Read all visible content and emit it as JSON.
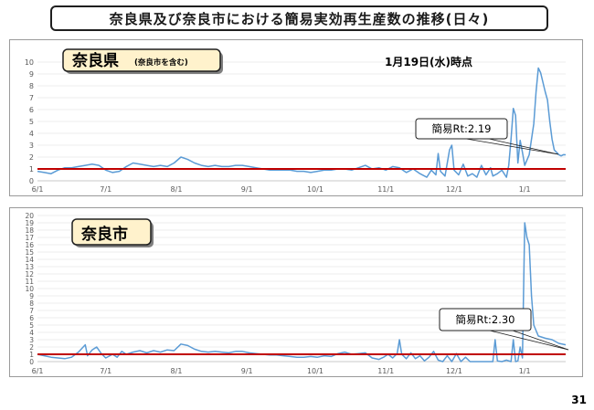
{
  "title": "奈良県及び奈良市における簡易実効再生産数の推移(日々)",
  "page_number": "31",
  "colors": {
    "line": "#5b9bd5",
    "threshold": "#c00000",
    "label_box_bg": "#fff2cc",
    "grid": "#d9d9d9"
  },
  "chart_data": [
    {
      "type": "line",
      "panel_label": "奈良県",
      "panel_sublabel": "(奈良市を含む)",
      "date_note": "1月19日(水)時点",
      "annotation": "簡易Rt:2.19",
      "x_ticks": [
        "6/1",
        "7/1",
        "8/1",
        "9/1",
        "10/1",
        "11/1",
        "12/1",
        "1/1"
      ],
      "y_ticks": [
        0,
        1,
        2,
        3,
        4,
        5,
        6,
        7,
        8,
        9,
        10
      ],
      "ylim": [
        0,
        10
      ],
      "x_range_days": [
        0,
        232
      ],
      "threshold": 1,
      "grid": true,
      "points": [
        [
          0,
          0.8
        ],
        [
          3,
          0.7
        ],
        [
          6,
          0.6
        ],
        [
          9,
          0.9
        ],
        [
          12,
          1.1
        ],
        [
          15,
          1.1
        ],
        [
          18,
          1.2
        ],
        [
          21,
          1.3
        ],
        [
          24,
          1.4
        ],
        [
          27,
          1.3
        ],
        [
          30,
          0.9
        ],
        [
          33,
          0.7
        ],
        [
          36,
          0.8
        ],
        [
          39,
          1.2
        ],
        [
          42,
          1.5
        ],
        [
          45,
          1.4
        ],
        [
          48,
          1.3
        ],
        [
          51,
          1.2
        ],
        [
          54,
          1.3
        ],
        [
          57,
          1.2
        ],
        [
          60,
          1.5
        ],
        [
          63,
          2.0
        ],
        [
          66,
          1.8
        ],
        [
          69,
          1.5
        ],
        [
          72,
          1.3
        ],
        [
          75,
          1.2
        ],
        [
          78,
          1.3
        ],
        [
          81,
          1.2
        ],
        [
          84,
          1.2
        ],
        [
          87,
          1.3
        ],
        [
          90,
          1.3
        ],
        [
          93,
          1.2
        ],
        [
          96,
          1.1
        ],
        [
          99,
          1.0
        ],
        [
          102,
          0.9
        ],
        [
          105,
          0.9
        ],
        [
          108,
          0.9
        ],
        [
          111,
          0.9
        ],
        [
          114,
          0.8
        ],
        [
          117,
          0.8
        ],
        [
          120,
          0.7
        ],
        [
          123,
          0.8
        ],
        [
          126,
          0.9
        ],
        [
          129,
          0.9
        ],
        [
          132,
          1.0
        ],
        [
          135,
          1.0
        ],
        [
          138,
          0.9
        ],
        [
          141,
          1.1
        ],
        [
          144,
          1.3
        ],
        [
          147,
          1.0
        ],
        [
          150,
          1.1
        ],
        [
          153,
          0.9
        ],
        [
          156,
          1.2
        ],
        [
          159,
          1.1
        ],
        [
          162,
          0.7
        ],
        [
          165,
          1.0
        ],
        [
          168,
          0.6
        ],
        [
          171,
          0.3
        ],
        [
          173,
          0.9
        ],
        [
          175,
          0.5
        ],
        [
          176,
          2.3
        ],
        [
          177,
          0.8
        ],
        [
          179,
          0.4
        ],
        [
          181,
          2.6
        ],
        [
          182,
          3.0
        ],
        [
          183,
          0.9
        ],
        [
          185,
          0.5
        ],
        [
          187,
          1.4
        ],
        [
          189,
          0.4
        ],
        [
          191,
          0.6
        ],
        [
          193,
          0.3
        ],
        [
          195,
          1.3
        ],
        [
          197,
          0.5
        ],
        [
          199,
          1.1
        ],
        [
          200,
          0.4
        ],
        [
          202,
          0.6
        ],
        [
          204,
          0.9
        ],
        [
          206,
          0.3
        ],
        [
          207,
          1.3
        ],
        [
          208,
          3.5
        ],
        [
          209,
          6.1
        ],
        [
          210,
          5.5
        ],
        [
          211,
          1.5
        ],
        [
          212,
          3.4
        ],
        [
          213,
          2.4
        ],
        [
          214,
          1.3
        ],
        [
          216,
          2.2
        ],
        [
          218,
          4.8
        ],
        [
          219,
          7.5
        ],
        [
          220,
          9.5
        ],
        [
          221,
          9.1
        ],
        [
          223,
          7.5
        ],
        [
          224,
          6.8
        ],
        [
          225,
          5.0
        ],
        [
          226,
          3.5
        ],
        [
          227,
          2.6
        ],
        [
          228,
          2.4
        ],
        [
          229,
          2.2
        ],
        [
          230,
          2.1
        ],
        [
          231,
          2.2
        ],
        [
          232,
          2.19
        ]
      ]
    },
    {
      "type": "line",
      "panel_label": "奈良市",
      "annotation": "簡易Rt:2.30",
      "x_ticks": [
        "6/1",
        "7/1",
        "8/1",
        "9/1",
        "10/1",
        "11/1",
        "12/1",
        "1/1"
      ],
      "y_ticks": [
        0,
        1,
        2,
        3,
        4,
        5,
        6,
        7,
        8,
        9,
        10,
        11,
        12,
        13,
        14,
        15,
        16,
        17,
        18,
        19,
        20
      ],
      "ylim": [
        0,
        20
      ],
      "x_range_days": [
        0,
        232
      ],
      "threshold": 1,
      "grid": true,
      "points": [
        [
          0,
          1.0
        ],
        [
          3,
          0.8
        ],
        [
          6,
          0.6
        ],
        [
          9,
          0.5
        ],
        [
          12,
          0.4
        ],
        [
          15,
          0.6
        ],
        [
          18,
          1.3
        ],
        [
          21,
          2.3
        ],
        [
          22,
          0.8
        ],
        [
          24,
          1.6
        ],
        [
          26,
          2.0
        ],
        [
          28,
          1.1
        ],
        [
          30,
          0.5
        ],
        [
          33,
          1.0
        ],
        [
          35,
          0.6
        ],
        [
          37,
          1.4
        ],
        [
          39,
          1.0
        ],
        [
          42,
          1.3
        ],
        [
          45,
          1.5
        ],
        [
          48,
          1.2
        ],
        [
          51,
          1.5
        ],
        [
          54,
          1.3
        ],
        [
          57,
          1.6
        ],
        [
          60,
          1.5
        ],
        [
          63,
          2.4
        ],
        [
          66,
          2.2
        ],
        [
          69,
          1.7
        ],
        [
          72,
          1.4
        ],
        [
          75,
          1.3
        ],
        [
          78,
          1.4
        ],
        [
          81,
          1.3
        ],
        [
          84,
          1.2
        ],
        [
          87,
          1.4
        ],
        [
          90,
          1.4
        ],
        [
          93,
          1.2
        ],
        [
          96,
          1.1
        ],
        [
          99,
          1.0
        ],
        [
          102,
          0.9
        ],
        [
          105,
          0.9
        ],
        [
          108,
          0.8
        ],
        [
          111,
          0.7
        ],
        [
          114,
          0.6
        ],
        [
          117,
          0.6
        ],
        [
          120,
          0.7
        ],
        [
          123,
          0.6
        ],
        [
          126,
          0.8
        ],
        [
          129,
          0.7
        ],
        [
          132,
          1.1
        ],
        [
          135,
          1.3
        ],
        [
          138,
          1.0
        ],
        [
          141,
          1.1
        ],
        [
          144,
          1.2
        ],
        [
          147,
          0.5
        ],
        [
          150,
          0.3
        ],
        [
          152,
          0.6
        ],
        [
          154,
          1.0
        ],
        [
          156,
          0.5
        ],
        [
          158,
          1.1
        ],
        [
          159,
          3.0
        ],
        [
          160,
          1.0
        ],
        [
          162,
          0.4
        ],
        [
          164,
          1.2
        ],
        [
          166,
          0.4
        ],
        [
          168,
          0.8
        ],
        [
          170,
          0.1
        ],
        [
          172,
          0.6
        ],
        [
          174,
          1.4
        ],
        [
          176,
          0.2
        ],
        [
          178,
          0.0
        ],
        [
          180,
          0.8
        ],
        [
          182,
          0.0
        ],
        [
          184,
          1.1
        ],
        [
          186,
          0.0
        ],
        [
          188,
          0.6
        ],
        [
          190,
          0.0
        ],
        [
          194,
          0.0
        ],
        [
          198,
          0.0
        ],
        [
          200,
          0.0
        ],
        [
          201,
          3.0
        ],
        [
          202,
          0.1
        ],
        [
          204,
          0.0
        ],
        [
          206,
          0.2
        ],
        [
          208,
          0.0
        ],
        [
          209,
          3.0
        ],
        [
          210,
          0.0
        ],
        [
          211,
          0.1
        ],
        [
          212,
          2.0
        ],
        [
          213,
          0.5
        ],
        [
          214,
          19.0
        ],
        [
          215,
          17.0
        ],
        [
          216,
          16.0
        ],
        [
          217,
          9.0
        ],
        [
          218,
          5.0
        ],
        [
          220,
          3.5
        ],
        [
          223,
          3.2
        ],
        [
          226,
          3.0
        ],
        [
          229,
          2.5
        ],
        [
          232,
          2.3
        ]
      ]
    }
  ]
}
